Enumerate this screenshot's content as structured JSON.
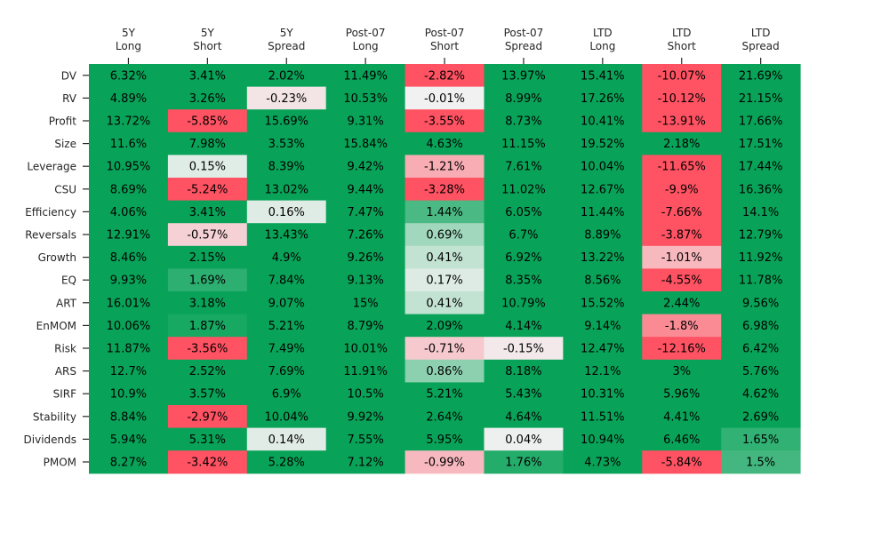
{
  "chart_data": {
    "type": "heatmap",
    "columns": [
      [
        "5Y",
        "Long"
      ],
      [
        "5Y",
        "Short"
      ],
      [
        "5Y",
        "Spread"
      ],
      [
        "Post-07",
        "Long"
      ],
      [
        "Post-07",
        "Short"
      ],
      [
        "Post-07",
        "Spread"
      ],
      [
        "LTD",
        "Long"
      ],
      [
        "LTD",
        "Short"
      ],
      [
        "LTD",
        "Spread"
      ]
    ],
    "rows": [
      "DV",
      "RV",
      "Profit",
      "Size",
      "Leverage",
      "CSU",
      "Efficiency",
      "Reversals",
      "Growth",
      "EQ",
      "ART",
      "EnMOM",
      "Risk",
      "ARS",
      "SIRF",
      "Stability",
      "Dividends",
      "PMOM"
    ],
    "values": [
      [
        6.32,
        3.41,
        2.02,
        11.49,
        -2.82,
        13.97,
        15.41,
        -10.07,
        21.69
      ],
      [
        4.89,
        3.26,
        -0.23,
        10.53,
        -0.01,
        8.99,
        17.26,
        -10.12,
        21.15
      ],
      [
        13.72,
        -5.85,
        15.69,
        9.31,
        -3.55,
        8.73,
        10.41,
        -13.91,
        17.66
      ],
      [
        11.6,
        7.98,
        3.53,
        15.84,
        4.63,
        11.15,
        19.52,
        2.18,
        17.51
      ],
      [
        10.95,
        0.15,
        8.39,
        9.42,
        -1.21,
        7.61,
        10.04,
        -11.65,
        17.44
      ],
      [
        8.69,
        -5.24,
        13.02,
        9.44,
        -3.28,
        11.02,
        12.67,
        -9.9,
        16.36
      ],
      [
        4.06,
        3.41,
        0.16,
        7.47,
        1.44,
        6.05,
        11.44,
        -7.66,
        14.1
      ],
      [
        12.91,
        -0.57,
        13.43,
        7.26,
        0.69,
        6.7,
        8.89,
        -3.87,
        12.79
      ],
      [
        8.46,
        2.15,
        4.9,
        9.26,
        0.41,
        6.92,
        13.22,
        -1.01,
        11.92
      ],
      [
        9.93,
        1.69,
        7.84,
        9.13,
        0.17,
        8.35,
        8.56,
        -4.55,
        11.78
      ],
      [
        16.01,
        3.18,
        9.07,
        15.0,
        0.41,
        10.79,
        15.52,
        2.44,
        9.56
      ],
      [
        10.06,
        1.87,
        5.21,
        8.79,
        2.09,
        4.14,
        9.14,
        -1.8,
        6.98
      ],
      [
        11.87,
        -3.56,
        7.49,
        10.01,
        -0.71,
        -0.15,
        12.47,
        -12.16,
        6.42
      ],
      [
        12.7,
        2.52,
        7.69,
        11.91,
        0.86,
        8.18,
        12.1,
        3.0,
        5.76
      ],
      [
        10.9,
        3.57,
        6.9,
        10.5,
        5.21,
        5.43,
        10.31,
        5.96,
        4.62
      ],
      [
        8.84,
        -2.97,
        10.04,
        9.92,
        2.64,
        4.64,
        11.51,
        4.41,
        2.69
      ],
      [
        5.94,
        5.31,
        0.14,
        7.55,
        5.95,
        0.04,
        10.94,
        6.46,
        1.65
      ],
      [
        8.27,
        -3.42,
        5.28,
        7.12,
        -0.99,
        1.76,
        4.73,
        -5.84,
        1.5
      ]
    ],
    "value_suffix": "%",
    "color_scale": {
      "negative": "#ff5262",
      "neutral": "#f2f2f2",
      "positive": "#08a358",
      "neg_limit": -2.8,
      "pos_limit": 2.0
    }
  }
}
